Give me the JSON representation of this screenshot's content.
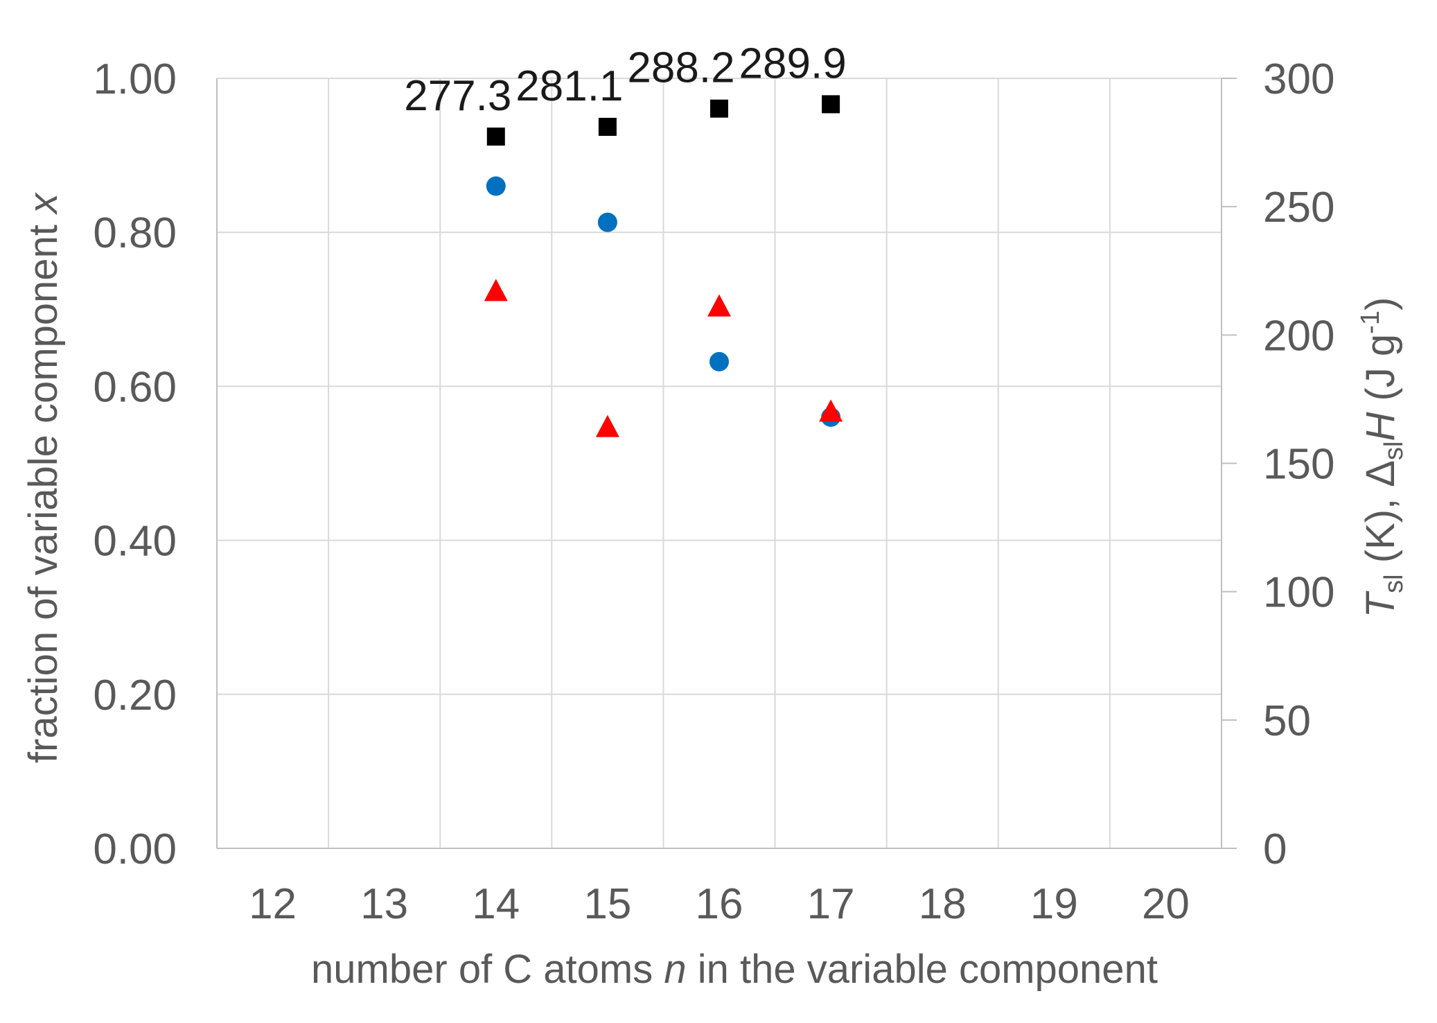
{
  "chart_data": {
    "type": "scatter",
    "title": "",
    "x": [
      14,
      15,
      16,
      17
    ],
    "xlim": [
      11.5,
      20.5
    ],
    "xticks": [
      "12",
      "13",
      "14",
      "15",
      "16",
      "17",
      "18",
      "19",
      "20"
    ],
    "xlabel": {
      "pre": "number of C atoms ",
      "var": "n",
      "post": " in the variable component"
    },
    "ylabel_left": {
      "pre": "fraction of variable component ",
      "var": "x"
    },
    "ylim_left": [
      0,
      1.0
    ],
    "yticks_left": [
      "0.00",
      "0.20",
      "0.40",
      "0.60",
      "0.80",
      "1.00"
    ],
    "ylabel_right": {
      "T": "T",
      "sl": "sl",
      "mid": " (K), ",
      "delta": "Δ",
      "sl2": "sl",
      "H": "H",
      "tail": " (J g",
      "exp": "-1",
      "close": ")"
    },
    "ylim_right": [
      0,
      300
    ],
    "yticks_right": [
      "0",
      "50",
      "100",
      "150",
      "200",
      "250",
      "300"
    ],
    "grid": true,
    "legend": "none",
    "series": [
      {
        "marker": "circle",
        "color": "#0070c0",
        "axis": "left",
        "values": [
          0.86,
          0.813,
          0.632,
          0.56
        ]
      },
      {
        "marker": "square",
        "color": "#000000",
        "axis": "right",
        "values": [
          277.3,
          281.1,
          288.2,
          289.9
        ],
        "data_labels": [
          "277.3",
          "281.1",
          "288.2",
          "289.9"
        ]
      },
      {
        "marker": "triangle",
        "color": "#ff0000",
        "axis": "right",
        "values": [
          217,
          164,
          211,
          170
        ]
      }
    ]
  }
}
